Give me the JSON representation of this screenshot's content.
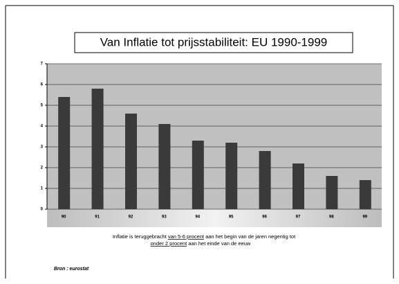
{
  "chart_data": {
    "type": "bar",
    "title": "Van Inflatie tot prijsstabiliteit: EU 1990-1999",
    "categories": [
      "90",
      "91",
      "92",
      "93",
      "94",
      "95",
      "96",
      "97",
      "98",
      "99"
    ],
    "values": [
      5.4,
      5.8,
      4.6,
      4.1,
      3.3,
      3.2,
      2.8,
      2.2,
      1.6,
      1.4
    ],
    "color": "#3a3a3a",
    "plot_background": "#c0c0c0",
    "ylim": [
      0,
      7
    ],
    "yticks": [
      0,
      1,
      2,
      3,
      4,
      5,
      6,
      7
    ],
    "grid": true,
    "caption": {
      "line1": [
        "Inflatie is teruggebracht ",
        "van 5-6 procent",
        " aan het begin van de jaren negentig tot"
      ],
      "line2": [
        "onder 2 procent",
        " aan het einde van de eeuw"
      ]
    },
    "source": "Bron : eurostat"
  }
}
